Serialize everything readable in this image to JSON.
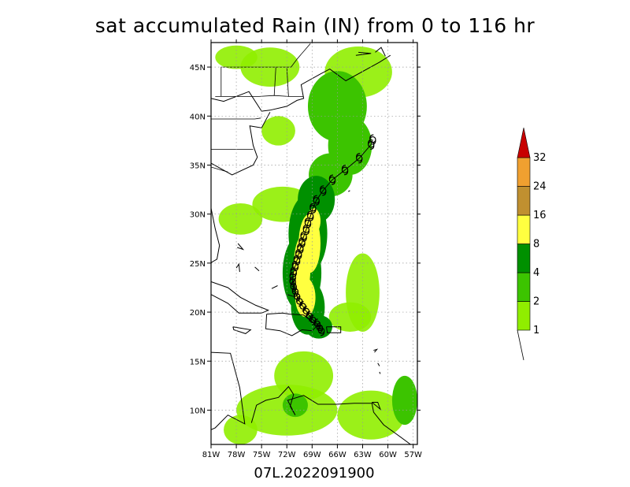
{
  "chart_data": {
    "type": "heatmap",
    "title": "sat accumulated Rain (IN) from 0 to 116 hr",
    "subtitle": "07L.2022091900",
    "x_ticks": [
      "81W",
      "78W",
      "75W",
      "72W",
      "69W",
      "66W",
      "63W",
      "60W",
      "57W"
    ],
    "x_values": [
      -81,
      -78,
      -75,
      -72,
      -69,
      -66,
      -63,
      -60,
      -57
    ],
    "y_ticks": [
      "10N",
      "15N",
      "20N",
      "25N",
      "30N",
      "35N",
      "40N",
      "45N"
    ],
    "y_values": [
      10,
      15,
      20,
      25,
      30,
      35,
      40,
      45
    ],
    "xlim": [
      -81,
      -56.5
    ],
    "ylim": [
      6.5,
      47.5
    ],
    "grid": true,
    "colorbar": {
      "levels": [
        "1",
        "2",
        "4",
        "8",
        "16",
        "24",
        "32"
      ],
      "colors": [
        "#90ee00",
        "#3cc400",
        "#009000",
        "#ffff40",
        "#c09030",
        "#f0a030",
        "#c80000"
      ]
    },
    "track": [
      [
        -67.9,
        18.1
      ],
      [
        -68.1,
        18.4
      ],
      [
        -68.4,
        18.8
      ],
      [
        -68.9,
        19.2
      ],
      [
        -69.3,
        19.6
      ],
      [
        -69.7,
        20.1
      ],
      [
        -70.1,
        20.6
      ],
      [
        -70.5,
        21.1
      ],
      [
        -70.8,
        21.6
      ],
      [
        -71.0,
        22.1
      ],
      [
        -71.2,
        22.6
      ],
      [
        -71.3,
        23.1
      ],
      [
        -71.3,
        23.6
      ],
      [
        -71.2,
        24.1
      ],
      [
        -71.0,
        24.7
      ],
      [
        -70.8,
        25.3
      ],
      [
        -70.6,
        25.9
      ],
      [
        -70.4,
        26.5
      ],
      [
        -70.2,
        27.1
      ],
      [
        -70.0,
        27.7
      ],
      [
        -69.7,
        28.4
      ],
      [
        -69.5,
        29.1
      ],
      [
        -69.2,
        29.8
      ],
      [
        -68.9,
        30.6
      ],
      [
        -68.5,
        31.4
      ],
      [
        -67.7,
        32.4
      ],
      [
        -66.6,
        33.5
      ],
      [
        -65.1,
        34.5
      ],
      [
        -63.4,
        35.7
      ],
      [
        -62.0,
        37.1
      ],
      [
        -61.8,
        37.6
      ]
    ],
    "rain_core": [
      {
        "lon": -68.2,
        "lat": 18.5,
        "rx": 1.6,
        "ry": 1.2,
        "level": 2
      },
      {
        "lon": -69.5,
        "lat": 20.5,
        "rx": 2.0,
        "ry": 2.8,
        "level": 2
      },
      {
        "lon": -70.2,
        "lat": 24.0,
        "rx": 2.3,
        "ry": 4.0,
        "level": 2
      },
      {
        "lon": -69.5,
        "lat": 28.0,
        "rx": 2.3,
        "ry": 4.0,
        "level": 2
      },
      {
        "lon": -68.5,
        "lat": 31.5,
        "rx": 2.2,
        "ry": 2.4,
        "level": 2
      },
      {
        "lon": -66.8,
        "lat": 34.0,
        "rx": 2.6,
        "ry": 2.2,
        "level": 1
      },
      {
        "lon": -64.5,
        "lat": 37.0,
        "rx": 2.6,
        "ry": 3.0,
        "level": 1
      },
      {
        "lon": -66.0,
        "lat": 41.0,
        "rx": 3.5,
        "ry": 3.6,
        "level": 1
      },
      {
        "lon": -63.5,
        "lat": 44.5,
        "rx": 4.0,
        "ry": 2.6,
        "level": 0
      },
      {
        "lon": -69.8,
        "lat": 21.5,
        "rx": 1.2,
        "ry": 2.0,
        "level": 3
      },
      {
        "lon": -70.2,
        "lat": 24.5,
        "rx": 1.0,
        "ry": 3.2,
        "level": 3
      },
      {
        "lon": -69.3,
        "lat": 27.0,
        "rx": 1.3,
        "ry": 3.0,
        "level": 3
      },
      {
        "lon": -68.8,
        "lat": 29.3,
        "rx": 0.8,
        "ry": 1.3,
        "level": 3
      },
      {
        "lon": -72.5,
        "lat": 31.0,
        "rx": 3.6,
        "ry": 1.8,
        "level": 0
      },
      {
        "lon": -77.5,
        "lat": 29.5,
        "rx": 2.6,
        "ry": 1.6,
        "level": 0
      },
      {
        "lon": -74.0,
        "lat": 45.0,
        "rx": 3.5,
        "ry": 2.0,
        "level": 0
      },
      {
        "lon": -78.0,
        "lat": 46.0,
        "rx": 2.5,
        "ry": 1.2,
        "level": 0
      },
      {
        "lon": -73.0,
        "lat": 38.5,
        "rx": 2.0,
        "ry": 1.5,
        "level": 0
      },
      {
        "lon": -63.0,
        "lat": 22.0,
        "rx": 2.0,
        "ry": 4.0,
        "level": 0
      },
      {
        "lon": -64.5,
        "lat": 19.5,
        "rx": 2.5,
        "ry": 1.5,
        "level": 0
      },
      {
        "lon": -70.0,
        "lat": 13.5,
        "rx": 3.5,
        "ry": 2.5,
        "level": 0
      },
      {
        "lon": -72.0,
        "lat": 10.0,
        "rx": 6.0,
        "ry": 2.6,
        "level": 0
      },
      {
        "lon": -62.0,
        "lat": 9.5,
        "rx": 4.0,
        "ry": 2.5,
        "level": 0
      },
      {
        "lon": -77.5,
        "lat": 8.0,
        "rx": 2.0,
        "ry": 1.5,
        "level": 0
      },
      {
        "lon": -58.0,
        "lat": 11.0,
        "rx": 1.5,
        "ry": 2.5,
        "level": 1
      },
      {
        "lon": -71.0,
        "lat": 10.5,
        "rx": 1.5,
        "ry": 1.2,
        "level": 1
      }
    ]
  }
}
